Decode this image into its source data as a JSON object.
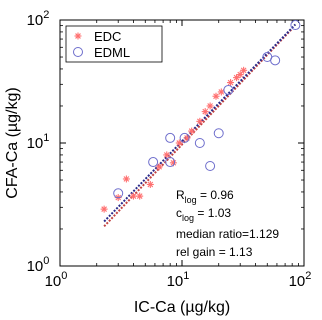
{
  "chart_data": {
    "type": "scatter",
    "xlabel": "IC-Ca (µg/kg)",
    "ylabel": "CFA-Ca (µg/kg)",
    "xscale": "log",
    "yscale": "log",
    "xlim": [
      1,
      100
    ],
    "ylim": [
      1,
      100
    ],
    "x_ticks": [
      {
        "value": 1,
        "base": "10",
        "exp": "0"
      },
      {
        "value": 10,
        "base": "10",
        "exp": "1"
      },
      {
        "value": 100,
        "base": "10",
        "exp": "2"
      }
    ],
    "y_ticks": [
      {
        "value": 1,
        "base": "10",
        "exp": "0"
      },
      {
        "value": 10,
        "base": "10",
        "exp": "1"
      },
      {
        "value": 100,
        "base": "10",
        "exp": "2"
      }
    ],
    "grid": false,
    "legend_position": "top-left",
    "series": [
      {
        "name": "EDC",
        "marker": "asterisk",
        "color": "#ff7070",
        "points": [
          [
            2.3,
            2.9
          ],
          [
            3.0,
            3.6
          ],
          [
            3.5,
            5.1
          ],
          [
            4.0,
            3.7
          ],
          [
            4.5,
            3.7
          ],
          [
            5.5,
            4.6
          ],
          [
            6.5,
            6.4
          ],
          [
            7.5,
            8.0
          ],
          [
            8.5,
            6.9
          ],
          [
            9.5,
            10.0
          ],
          [
            11.0,
            11.0
          ],
          [
            12.0,
            12.5
          ],
          [
            14.0,
            15.0
          ],
          [
            15.5,
            18.0
          ],
          [
            17.0,
            20.0
          ],
          [
            19.0,
            24.0
          ],
          [
            21.0,
            26.0
          ],
          [
            25.0,
            31.0
          ],
          [
            28.0,
            34.0
          ],
          [
            30.0,
            36.0
          ],
          [
            32.0,
            39.0
          ]
        ]
      },
      {
        "name": "EDML",
        "marker": "circle",
        "color": "#6e6ecc",
        "points": [
          [
            3.0,
            3.9
          ],
          [
            5.8,
            7.0
          ],
          [
            8.0,
            7.0
          ],
          [
            8.0,
            11.0
          ],
          [
            10.5,
            11.0
          ],
          [
            14.0,
            10.0
          ],
          [
            17.0,
            6.5
          ],
          [
            20.0,
            12.0
          ],
          [
            24.0,
            27.0
          ],
          [
            50.0,
            50.0
          ],
          [
            58.0,
            47.0
          ],
          [
            85.0,
            91.0
          ]
        ]
      }
    ],
    "fit_lines": [
      {
        "color": "#c04040",
        "from": [
          2.3,
          2.1
        ],
        "to": [
          80.0,
          85.0
        ]
      },
      {
        "color": "#2a2a8a",
        "from": [
          2.3,
          2.3
        ],
        "to": [
          85.0,
          92.0
        ]
      }
    ],
    "annotations": [
      {
        "text": "R",
        "sub": "log",
        "suffix": " = 0.96"
      },
      {
        "text": "c",
        "sub": "log",
        "suffix": " = 1.03"
      },
      {
        "text": "median ratio=1.129"
      },
      {
        "text": "rel gain = 1.13"
      }
    ]
  }
}
